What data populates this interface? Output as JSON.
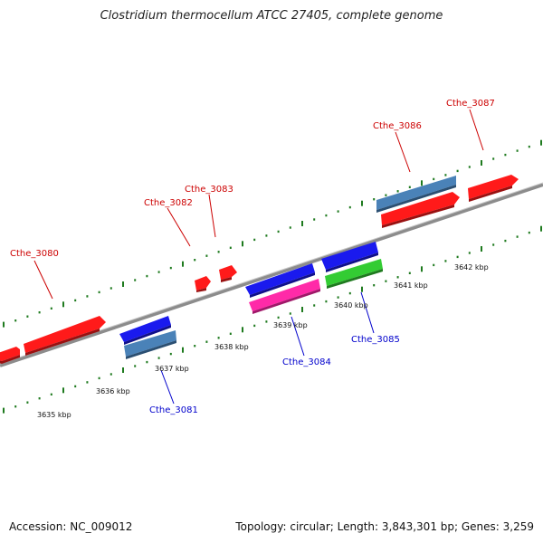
{
  "header": {
    "title": "Clostridium thermocellum ATCC 27405, complete genome"
  },
  "footer": {
    "accession": "Accession: NC_009012",
    "summary": "Topology: circular; Length: 3,843,301 bp; Genes: 3,259"
  },
  "colors": {
    "backbone": "#8c8c8c",
    "tick": "#1e7a1e",
    "red_gene": "#ff1a1a",
    "blue_gene": "#1a1aee",
    "steel_gene": "#4a82b8",
    "magenta_gene": "#ff2aa8",
    "green_gene": "#33cc33",
    "label_top": "#cc0000",
    "label_bottom": "#0000cc"
  },
  "scale_labels": [
    "3635 kbp",
    "3636 kbp",
    "3637 kbp",
    "3638 kbp",
    "3639 kbp",
    "3640 kbp",
    "3641 kbp",
    "3642 kbp"
  ],
  "gene_labels": {
    "top": [
      "Cthe_3080",
      "Cthe_3082",
      "Cthe_3083",
      "Cthe_3086",
      "Cthe_3087"
    ],
    "bottom": [
      "Cthe_3081",
      "Cthe_3084",
      "Cthe_3085"
    ]
  }
}
